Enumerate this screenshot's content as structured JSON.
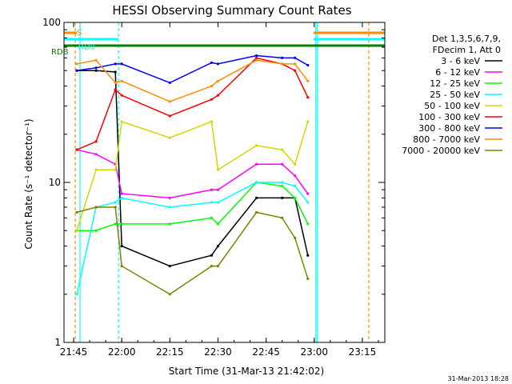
{
  "chart_data": {
    "type": "line",
    "title": "HESSI Observing Summary Count Rates",
    "xlabel": "Start Time (31-Mar-13 21:42:02)",
    "ylabel": "Count Rate (s⁻¹ detector⁻¹)",
    "y_scale": "log",
    "ylim": [
      1,
      100
    ],
    "xlim": [
      "21:42",
      "23:22"
    ],
    "x_ticks": [
      "21:45",
      "22:00",
      "22:15",
      "22:30",
      "22:45",
      "23:00",
      "23:15"
    ],
    "y_ticks": [
      "1",
      "10",
      "100"
    ],
    "grid": false,
    "legend_position": "right",
    "legend_header": [
      "Det 1,3,5,6,7,9,",
      "FDecim 1, Att 0"
    ],
    "series": [
      {
        "name": "3 - 6 keV",
        "color": "#000000",
        "x": [
          "21:46",
          "21:52",
          "21:58",
          "22:00",
          "22:15",
          "22:28",
          "22:30",
          "22:42",
          "22:50",
          "22:54",
          "22:58"
        ],
        "y": [
          50,
          50,
          49,
          4.0,
          3.0,
          3.5,
          4.0,
          8.0,
          8.0,
          8.0,
          3.5
        ]
      },
      {
        "name": "6 - 12 keV",
        "color": "#ff00ff",
        "x": [
          "21:46",
          "21:52",
          "21:58",
          "22:00",
          "22:15",
          "22:28",
          "22:30",
          "22:42",
          "22:50",
          "22:54",
          "22:58"
        ],
        "y": [
          16,
          15,
          13,
          8.5,
          8.0,
          9.0,
          9.0,
          13,
          13,
          11,
          8.5
        ]
      },
      {
        "name": "12 - 25 keV",
        "color": "#00ff00",
        "x": [
          "21:46",
          "21:52",
          "21:58",
          "22:00",
          "22:15",
          "22:28",
          "22:30",
          "22:42",
          "22:50",
          "22:54",
          "22:58"
        ],
        "y": [
          5.0,
          5.0,
          5.5,
          5.5,
          5.5,
          6.0,
          5.5,
          10,
          9.5,
          8.0,
          5.5
        ]
      },
      {
        "name": "25 - 50 keV",
        "color": "#00ffff",
        "x": [
          "21:46",
          "21:52",
          "21:58",
          "22:00",
          "22:15",
          "22:28",
          "22:30",
          "22:42",
          "22:50",
          "22:54",
          "22:58"
        ],
        "y": [
          2.0,
          7.0,
          7.5,
          8.0,
          7.0,
          7.5,
          7.5,
          10,
          10,
          9.5,
          7.5
        ]
      },
      {
        "name": "50 - 100 keV",
        "color": "#d6d600",
        "x": [
          "21:46",
          "21:52",
          "21:58",
          "22:00",
          "22:15",
          "22:28",
          "22:30",
          "22:42",
          "22:50",
          "22:54",
          "22:58"
        ],
        "y": [
          5.0,
          12,
          12,
          24,
          19,
          24,
          12,
          17,
          16,
          13,
          24
        ]
      },
      {
        "name": "100 - 300 keV",
        "color": "#ff0000",
        "x": [
          "21:46",
          "21:52",
          "21:58",
          "22:00",
          "22:15",
          "22:28",
          "22:30",
          "22:42",
          "22:50",
          "22:54",
          "22:58"
        ],
        "y": [
          16,
          18,
          38,
          35,
          26,
          33,
          35,
          60,
          55,
          50,
          34
        ]
      },
      {
        "name": "300 - 800 keV",
        "color": "#0000ff",
        "x": [
          "21:46",
          "21:52",
          "21:58",
          "22:00",
          "22:15",
          "22:28",
          "22:30",
          "22:42",
          "22:50",
          "22:54",
          "22:58"
        ],
        "y": [
          50,
          52,
          55,
          55,
          42,
          56,
          55,
          62,
          60,
          60,
          54
        ]
      },
      {
        "name": "800 - 7000 keV",
        "color": "#ff8c00",
        "x": [
          "21:46",
          "21:52",
          "21:58",
          "22:00",
          "22:15",
          "22:28",
          "22:30",
          "22:42",
          "22:50",
          "22:54",
          "22:58"
        ],
        "y": [
          55,
          58,
          42,
          43,
          32,
          40,
          43,
          58,
          55,
          55,
          43
        ]
      },
      {
        "name": "7000 - 20000 keV",
        "color": "#808000",
        "x": [
          "21:46",
          "21:52",
          "21:58",
          "22:00",
          "22:15",
          "22:28",
          "22:30",
          "22:42",
          "22:50",
          "22:54",
          "22:58"
        ],
        "y": [
          6.5,
          7.0,
          7.0,
          3.0,
          2.0,
          3.0,
          3.0,
          6.5,
          6.0,
          4.5,
          2.5
        ]
      }
    ],
    "markers": [
      {
        "label": "S",
        "color": "#ff8c00"
      },
      {
        "label": "RD0",
        "color": "#00ffff"
      },
      {
        "label": "RDB",
        "color": "#008000"
      }
    ]
  },
  "stamp": "31-Mar-2013 18:28"
}
